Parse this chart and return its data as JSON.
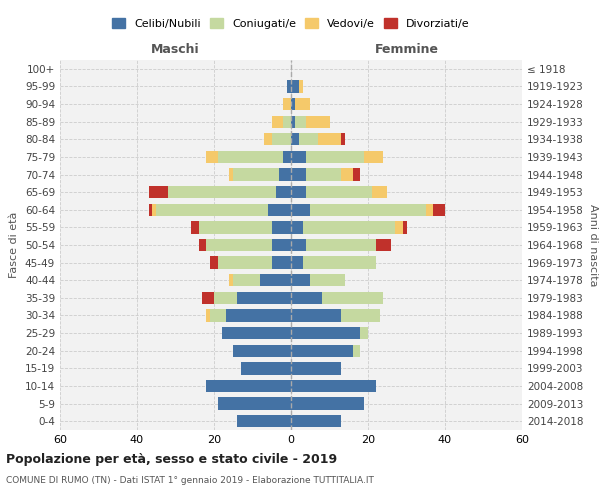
{
  "age_groups": [
    "0-4",
    "5-9",
    "10-14",
    "15-19",
    "20-24",
    "25-29",
    "30-34",
    "35-39",
    "40-44",
    "45-49",
    "50-54",
    "55-59",
    "60-64",
    "65-69",
    "70-74",
    "75-79",
    "80-84",
    "85-89",
    "90-94",
    "95-99",
    "100+"
  ],
  "birth_years": [
    "2014-2018",
    "2009-2013",
    "2004-2008",
    "1999-2003",
    "1994-1998",
    "1989-1993",
    "1984-1988",
    "1979-1983",
    "1974-1978",
    "1969-1973",
    "1964-1968",
    "1959-1963",
    "1954-1958",
    "1949-1953",
    "1944-1948",
    "1939-1943",
    "1934-1938",
    "1929-1933",
    "1924-1928",
    "1919-1923",
    "≤ 1918"
  ],
  "male": {
    "celibi": [
      14,
      19,
      22,
      13,
      15,
      18,
      17,
      14,
      8,
      5,
      5,
      5,
      6,
      4,
      3,
      2,
      0,
      0,
      0,
      1,
      0
    ],
    "coniugati": [
      0,
      0,
      0,
      0,
      0,
      0,
      4,
      6,
      7,
      14,
      17,
      19,
      29,
      28,
      12,
      17,
      5,
      2,
      0,
      0,
      0
    ],
    "vedovi": [
      0,
      0,
      0,
      0,
      0,
      0,
      1,
      0,
      1,
      0,
      0,
      0,
      1,
      0,
      1,
      3,
      2,
      3,
      2,
      0,
      0
    ],
    "divorziati": [
      0,
      0,
      0,
      0,
      0,
      0,
      0,
      3,
      0,
      2,
      2,
      2,
      1,
      5,
      0,
      0,
      0,
      0,
      0,
      0,
      0
    ]
  },
  "female": {
    "celibi": [
      13,
      19,
      22,
      13,
      16,
      18,
      13,
      8,
      5,
      3,
      4,
      3,
      5,
      4,
      4,
      4,
      2,
      1,
      1,
      2,
      0
    ],
    "coniugati": [
      0,
      0,
      0,
      0,
      2,
      2,
      10,
      16,
      9,
      19,
      18,
      24,
      30,
      17,
      9,
      15,
      5,
      3,
      0,
      0,
      0
    ],
    "vedovi": [
      0,
      0,
      0,
      0,
      0,
      0,
      0,
      0,
      0,
      0,
      0,
      2,
      2,
      4,
      3,
      5,
      6,
      6,
      4,
      1,
      0
    ],
    "divorziati": [
      0,
      0,
      0,
      0,
      0,
      0,
      0,
      0,
      0,
      0,
      4,
      1,
      3,
      0,
      2,
      0,
      1,
      0,
      0,
      0,
      0
    ]
  },
  "colors": {
    "celibi": "#4472a4",
    "coniugati": "#c5d9a0",
    "vedovi": "#f5c96a",
    "divorziati": "#c0312b"
  },
  "xlim": 60,
  "title": "Popolazione per età, sesso e stato civile - 2019",
  "subtitle": "COMUNE DI RUMO (TN) - Dati ISTAT 1° gennaio 2019 - Elaborazione TUTTITALIA.IT",
  "ylabel_left": "Fasce di età",
  "ylabel_right": "Anni di nascita",
  "xlabel_male": "Maschi",
  "xlabel_female": "Femmine"
}
